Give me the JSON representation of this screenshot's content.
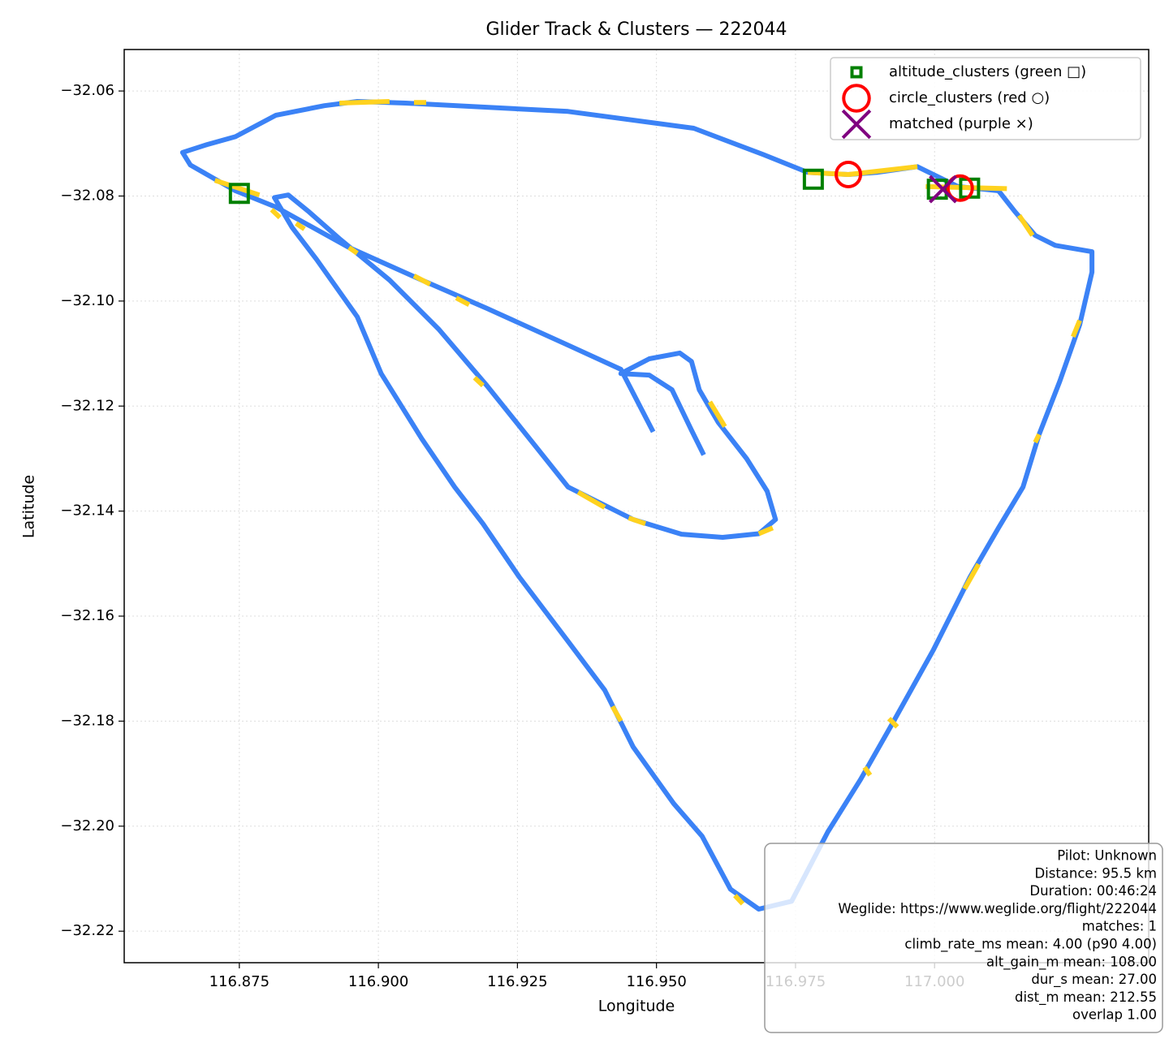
{
  "chart_data": {
    "type": "line",
    "title": "Glider Track & Clusters — 222044",
    "xlabel": "Longitude",
    "ylabel": "Latitude",
    "xlim": [
      116.8543,
      117.0385
    ],
    "ylim": [
      -32.226,
      -32.0521
    ],
    "xticks": [
      116.875,
      {
        "value": 116.9,
        "label": "116.900"
      },
      116.925,
      {
        "value": 116.95,
        "label": "116.950"
      },
      116.975,
      {
        "value": 117.0,
        "label": "117.000"
      }
    ],
    "yticks": [
      {
        "value": -32.06,
        "label": "−32.06"
      },
      {
        "value": -32.08,
        "label": "−32.08"
      },
      {
        "value": -32.1,
        "label": "−32.10"
      },
      {
        "value": -32.12,
        "label": "−32.12"
      },
      {
        "value": -32.14,
        "label": "−32.14"
      },
      {
        "value": -32.16,
        "label": "−32.16"
      },
      {
        "value": -32.18,
        "label": "−32.18"
      },
      {
        "value": -32.2,
        "label": "−32.20"
      },
      {
        "value": -32.22,
        "label": "−32.22"
      }
    ],
    "grid": true,
    "legend": "upper right",
    "track": {
      "color": "#3b82f6",
      "x": [
        116.9585,
        116.9563,
        116.9528,
        116.9487,
        116.9436,
        116.9487,
        116.9542,
        116.9563,
        116.9577,
        116.9611,
        116.9662,
        116.9699,
        116.9714,
        116.9684,
        116.9619,
        116.9545,
        116.9458,
        116.9341,
        116.9283,
        116.9195,
        116.9108,
        116.902,
        116.8932,
        116.8874,
        116.8838,
        116.8813,
        116.8845,
        116.8889,
        116.8962,
        116.9005,
        116.9078,
        116.9137,
        116.9188,
        116.9253,
        116.9341,
        116.9407,
        116.9458,
        116.9531,
        116.9582,
        116.9633,
        116.9684,
        116.9743,
        116.9808,
        116.9867,
        116.9925,
        116.9998,
        117.0064,
        117.0115,
        117.0159,
        117.0188,
        117.0225,
        117.0261,
        117.0283,
        117.0283,
        117.0217,
        117.0181,
        117.0144,
        117.0115,
        117.0042,
        116.9969,
        116.9896,
        116.9845,
        116.9772,
        116.9692,
        116.9567,
        116.9341,
        116.9049,
        116.8962,
        116.8903,
        116.8816,
        116.8743,
        116.8692,
        116.8648,
        116.8662,
        116.8743,
        116.8816,
        116.8947,
        116.9078,
        116.9195,
        116.9341,
        116.9436,
        116.9494
      ],
      "y": [
        -32.1293,
        -32.1246,
        -32.1169,
        -32.1141,
        -32.1138,
        -32.111,
        -32.1099,
        -32.1115,
        -32.1169,
        -32.1231,
        -32.13,
        -32.1362,
        -32.1416,
        -32.1443,
        -32.145,
        -32.1444,
        -32.1416,
        -32.1354,
        -32.1277,
        -32.1161,
        -32.1053,
        -32.096,
        -32.0883,
        -32.0829,
        -32.0798,
        -32.0803,
        -32.086,
        -32.0921,
        -32.103,
        -32.1138,
        -32.1262,
        -32.1354,
        -32.1424,
        -32.1525,
        -32.1648,
        -32.1741,
        -32.1849,
        -32.1957,
        -32.2019,
        -32.212,
        -32.2158,
        -32.2143,
        -32.2011,
        -32.1911,
        -32.1803,
        -32.1664,
        -32.1525,
        -32.1432,
        -32.1354,
        -32.1254,
        -32.1153,
        -32.1045,
        -32.0945,
        -32.0906,
        -32.0894,
        -32.0875,
        -32.0829,
        -32.079,
        -32.0782,
        -32.0744,
        -32.0755,
        -32.0759,
        -32.0755,
        -32.0721,
        -32.0671,
        -32.0639,
        -32.0623,
        -32.062,
        -32.0628,
        -32.0646,
        -32.0687,
        -32.0702,
        -32.0717,
        -32.0741,
        -32.079,
        -32.0821,
        -32.0898,
        -32.096,
        -32.1014,
        -32.1084,
        -32.113,
        -32.1249
      ]
    },
    "highlights": {
      "color": "#ffd21f",
      "x": [
        116.893,
        116.902,
        null,
        116.9064,
        116.9086,
        null,
        116.8947,
        116.8962,
        null,
        116.9064,
        116.9093,
        null,
        116.914,
        116.9163,
        null,
        116.9173,
        116.9188,
        null,
        116.9359,
        116.9407,
        null,
        116.945,
        116.948,
        null,
        116.9684,
        116.9709,
        null,
        116.9596,
        116.9623,
        null,
        116.9421,
        116.9436,
        null,
        116.9641,
        116.9655,
        null,
        116.9874,
        116.9884,
        null,
        116.9918,
        116.9933,
        null,
        117.0054,
        117.0079,
        null,
        117.0181,
        117.0188,
        null,
        117.0249,
        117.0261,
        null,
        117.0152,
        117.0176,
        null,
        116.9772,
        116.9845,
        116.9969,
        null,
        116.9984,
        117.013,
        null,
        116.8706,
        116.8786,
        null,
        116.8808,
        116.8823,
        null,
        116.8852,
        116.8867
      ],
      "y": [
        -32.0623,
        -32.062,
        null,
        -32.0622,
        -32.0622,
        null,
        -32.0898,
        -32.0909,
        null,
        -32.0952,
        -32.0968,
        null,
        -32.0994,
        -32.1007,
        null,
        -32.1146,
        -32.1161,
        null,
        -32.1364,
        -32.1393,
        null,
        -32.1413,
        -32.1424,
        null,
        -32.1443,
        -32.1432,
        null,
        -32.1192,
        -32.1239,
        null,
        -32.1772,
        -32.18,
        null,
        -32.2132,
        -32.2148,
        null,
        -32.1888,
        -32.1903,
        null,
        -32.1795,
        -32.1811,
        null,
        -32.1548,
        -32.1501,
        null,
        -32.1269,
        -32.1254,
        null,
        -32.1068,
        -32.1037,
        null,
        -32.0837,
        -32.0875,
        null,
        -32.0755,
        -32.0759,
        -32.0744,
        null,
        -32.0782,
        -32.0786,
        null,
        -32.077,
        -32.0798,
        null,
        -32.0826,
        -32.0841,
        null,
        -32.0852,
        -32.0863
      ]
    },
    "series": [
      {
        "name": "altitude_clusters (green □)",
        "color": "#008000",
        "marker": "square",
        "x": [
          116.9782,
          117.0005,
          117.0063,
          116.875
        ],
        "y": [
          -32.0768,
          -32.0787,
          -32.0785,
          -32.0795
        ]
      },
      {
        "name": "circle_clusters (red ○)",
        "color": "#ff0000",
        "marker": "circle",
        "x": [
          116.9845,
          117.0046
        ],
        "y": [
          -32.0759,
          -32.0785
        ]
      },
      {
        "name": "matched (purple ×)",
        "color": "#800080",
        "marker": "cross",
        "x": [
          117.0015
        ],
        "y": [
          -32.0787
        ]
      }
    ],
    "info": [
      "Pilot: Unknown",
      "Distance: 95.5 km",
      "Duration: 00:46:24",
      "Weglide: https://www.weglide.org/flight/222044",
      "matches: 1",
      "climb_rate_ms mean: 4.00 (p90 4.00)",
      "alt_gain_m mean: 108.00",
      "dur_s mean: 27.00",
      "dist_m mean: 212.55",
      "overlap 1.00"
    ]
  }
}
